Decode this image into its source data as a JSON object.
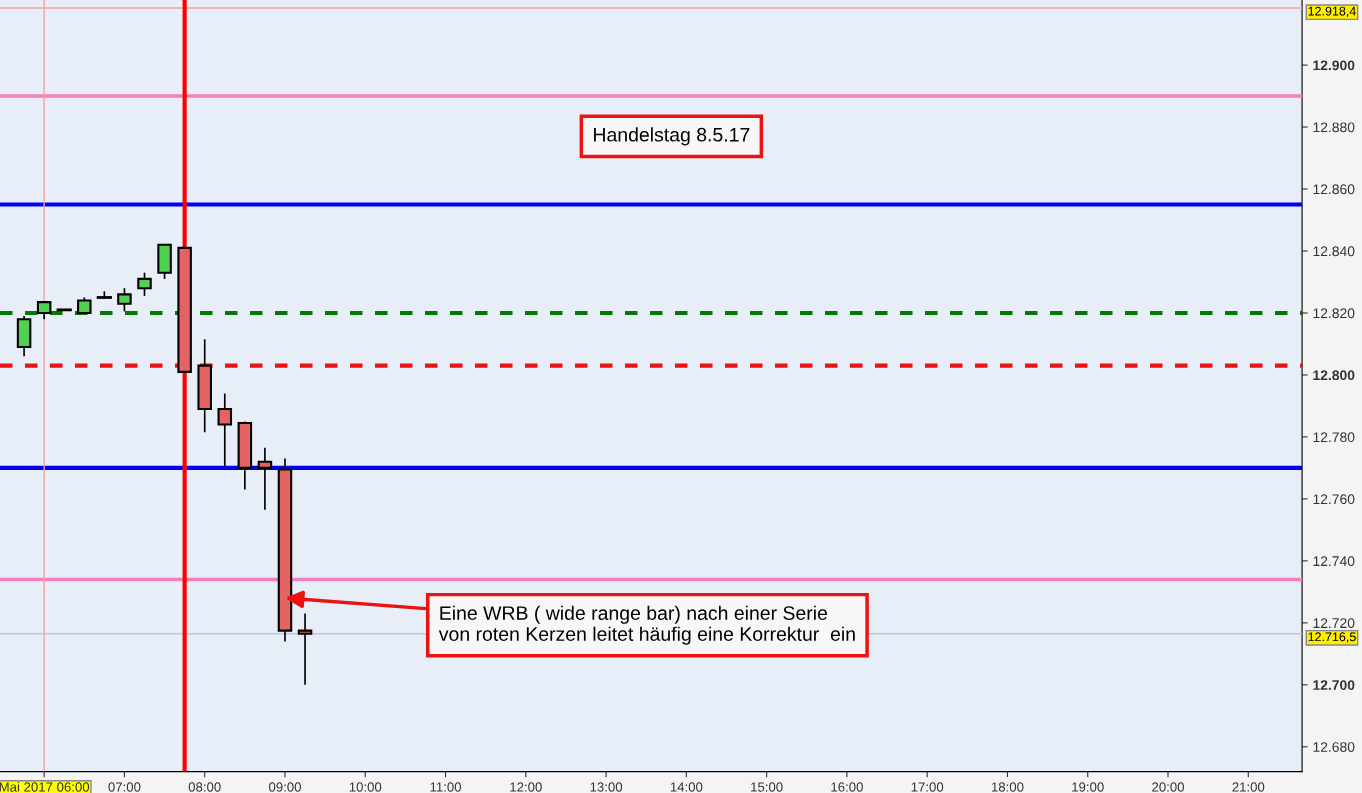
{
  "chart_data": {
    "type": "candlestick",
    "x": [
      5.75,
      6.0,
      6.25,
      6.5,
      6.75,
      7.0,
      7.25,
      7.5,
      7.75,
      8.0,
      8.25,
      8.5,
      8.75,
      9.0,
      9.25
    ],
    "ohlc": [
      [
        12809,
        12819,
        12806,
        12818
      ],
      [
        12820,
        12823.5,
        12818,
        12823.5
      ],
      [
        12821,
        12821,
        12821,
        12821
      ],
      [
        12820,
        12825,
        12820,
        12824
      ],
      [
        12825,
        12827,
        12824.5,
        12825
      ],
      [
        12823,
        12828,
        12820.5,
        12826
      ],
      [
        12828,
        12833,
        12825.5,
        12831
      ],
      [
        12833,
        12842,
        12831,
        12842
      ],
      [
        12841,
        12841,
        12801,
        12801
      ],
      [
        12803,
        12811.5,
        12781.5,
        12789
      ],
      [
        12789,
        12794,
        12770.5,
        12784
      ],
      [
        12784.5,
        12785,
        12763,
        12770
      ],
      [
        12772,
        12776.5,
        12756.5,
        12770
      ],
      [
        12769.5,
        12773,
        12714,
        12717.5
      ],
      [
        12717.5,
        12723,
        12700,
        12716.5
      ]
    ],
    "colors": [
      "#4fd24f",
      "#4fd24f",
      "#000000",
      "#4fd24f",
      "#000000",
      "#4fd24f",
      "#4fd24f",
      "#4fd24f",
      "#e56363",
      "#e56363",
      "#e56363",
      "#e56363",
      "#e56363",
      "#e56363",
      "#e56363"
    ],
    "xlim": [
      5.45,
      21.67
    ],
    "xticks": [
      {
        "value": 6,
        "label": "Mai 2017 06:00"
      },
      {
        "value": 7,
        "label": "07:00"
      },
      {
        "value": 8,
        "label": "08:00"
      },
      {
        "value": 9,
        "label": "09:00"
      },
      {
        "value": 10,
        "label": "10:00"
      },
      {
        "value": 11,
        "label": "11:00"
      },
      {
        "value": 12,
        "label": "12:00"
      },
      {
        "value": 13,
        "label": "13:00"
      },
      {
        "value": 14,
        "label": "14:00"
      },
      {
        "value": 15,
        "label": "15:00"
      },
      {
        "value": 16,
        "label": "16:00"
      },
      {
        "value": 17,
        "label": "17:00"
      },
      {
        "value": 18,
        "label": "18:00"
      },
      {
        "value": 19,
        "label": "19:00"
      },
      {
        "value": 20,
        "label": "20:00"
      },
      {
        "value": 21,
        "label": "21:00"
      }
    ],
    "ylim": [
      12672,
      12921
    ],
    "yticks": [
      {
        "value": 12680,
        "label": "12.680"
      },
      {
        "value": 12700,
        "label": "12.700"
      },
      {
        "value": 12720,
        "label": "12.720"
      },
      {
        "value": 12740,
        "label": "12.740"
      },
      {
        "value": 12760,
        "label": "12.760"
      },
      {
        "value": 12780,
        "label": "12.780"
      },
      {
        "value": 12800,
        "label": "12.800"
      },
      {
        "value": 12820,
        "label": "12.820"
      },
      {
        "value": 12840,
        "label": "12.840"
      },
      {
        "value": 12860,
        "label": "12.860"
      },
      {
        "value": 12880,
        "label": "12.880"
      },
      {
        "value": 12900,
        "label": "12.900"
      }
    ],
    "ref_lines": [
      {
        "axis": "y",
        "value": 12918.4,
        "label": "12.918,4",
        "color": "#f4a0a0"
      },
      {
        "axis": "y",
        "value": 12716.5,
        "label": "12.716,5",
        "color": "#b8c8ea"
      },
      {
        "axis": "y",
        "value": 12890,
        "color": "#f47fbf"
      },
      {
        "axis": "y",
        "value": 12855,
        "color": "#0000ee"
      },
      {
        "axis": "y",
        "value": 12820,
        "color": "#007a00",
        "line_style": "dashed"
      },
      {
        "axis": "y",
        "value": 12803,
        "color": "#ee1111",
        "line_style": "dashed"
      },
      {
        "axis": "y",
        "value": 12770,
        "color": "#0000ee"
      },
      {
        "axis": "y",
        "value": 12734,
        "color": "#f47fbf"
      },
      {
        "axis": "x",
        "value": 6,
        "color": "#f4a0a0"
      },
      {
        "axis": "x",
        "value": 7.75,
        "color": "#ff0000"
      }
    ],
    "annotations": [
      "Handelstag 8.5.17",
      {
        "text": "Eine WRB ( wide range bar) nach einer Serie\nvon roten Kerzen leitet häufig eine Korrektur  ein",
        "x": 9.0,
        "y": 12728
      }
    ],
    "grid": false
  }
}
